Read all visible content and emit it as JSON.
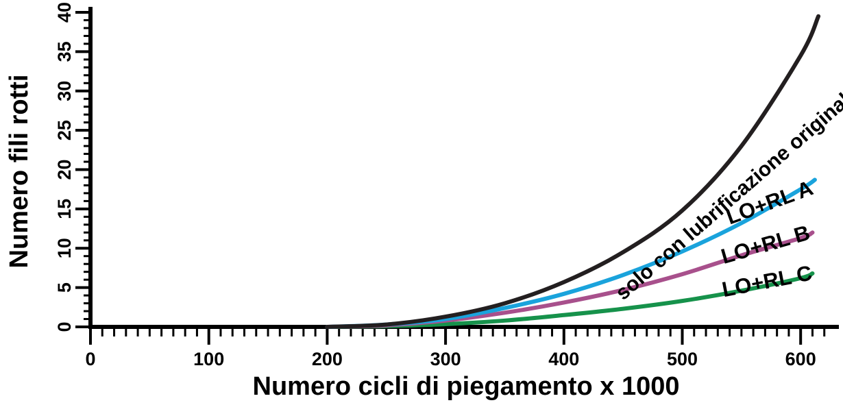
{
  "chart_data": {
    "type": "line",
    "xlabel": "Numero cicli di piegamento x 1000",
    "ylabel": "Numero fili rotti",
    "xlim": [
      0,
      630
    ],
    "ylim": [
      0,
      40
    ],
    "xticks": [
      "0",
      "100",
      "200",
      "300",
      "400",
      "500",
      "600"
    ],
    "yticks": [
      "0",
      "5",
      "10",
      "15",
      "20",
      "25",
      "30",
      "35",
      "40"
    ],
    "grid": false,
    "series": [
      {
        "name": "solo con lubrificazione originale (LO)",
        "color": "#231f20",
        "x": [
          200,
          250,
          300,
          350,
          400,
          450,
          500,
          550,
          600,
          615
        ],
        "y": [
          0,
          0.3,
          1.3,
          3.0,
          5.7,
          9.5,
          14.8,
          23.0,
          34.5,
          39.5
        ]
      },
      {
        "name": "LO+RL A",
        "color": "#1aa3dc",
        "x": [
          200,
          250,
          300,
          350,
          400,
          450,
          500,
          550,
          600,
          612
        ],
        "y": [
          0,
          0.3,
          1.0,
          2.4,
          4.2,
          6.6,
          9.6,
          13.2,
          17.5,
          18.7
        ]
      },
      {
        "name": "LO+RL B",
        "color": "#a8508c",
        "x": [
          200,
          250,
          300,
          350,
          400,
          450,
          500,
          550,
          600,
          610
        ],
        "y": [
          0,
          0.2,
          0.8,
          1.8,
          3.1,
          4.7,
          6.7,
          9.1,
          11.3,
          12.0
        ]
      },
      {
        "name": "LO+RL C",
        "color": "#16924b",
        "x": [
          200,
          250,
          300,
          350,
          400,
          450,
          500,
          550,
          600,
          610
        ],
        "y": [
          0,
          0.1,
          0.35,
          0.8,
          1.5,
          2.3,
          3.3,
          4.6,
          6.2,
          6.8
        ]
      }
    ]
  }
}
